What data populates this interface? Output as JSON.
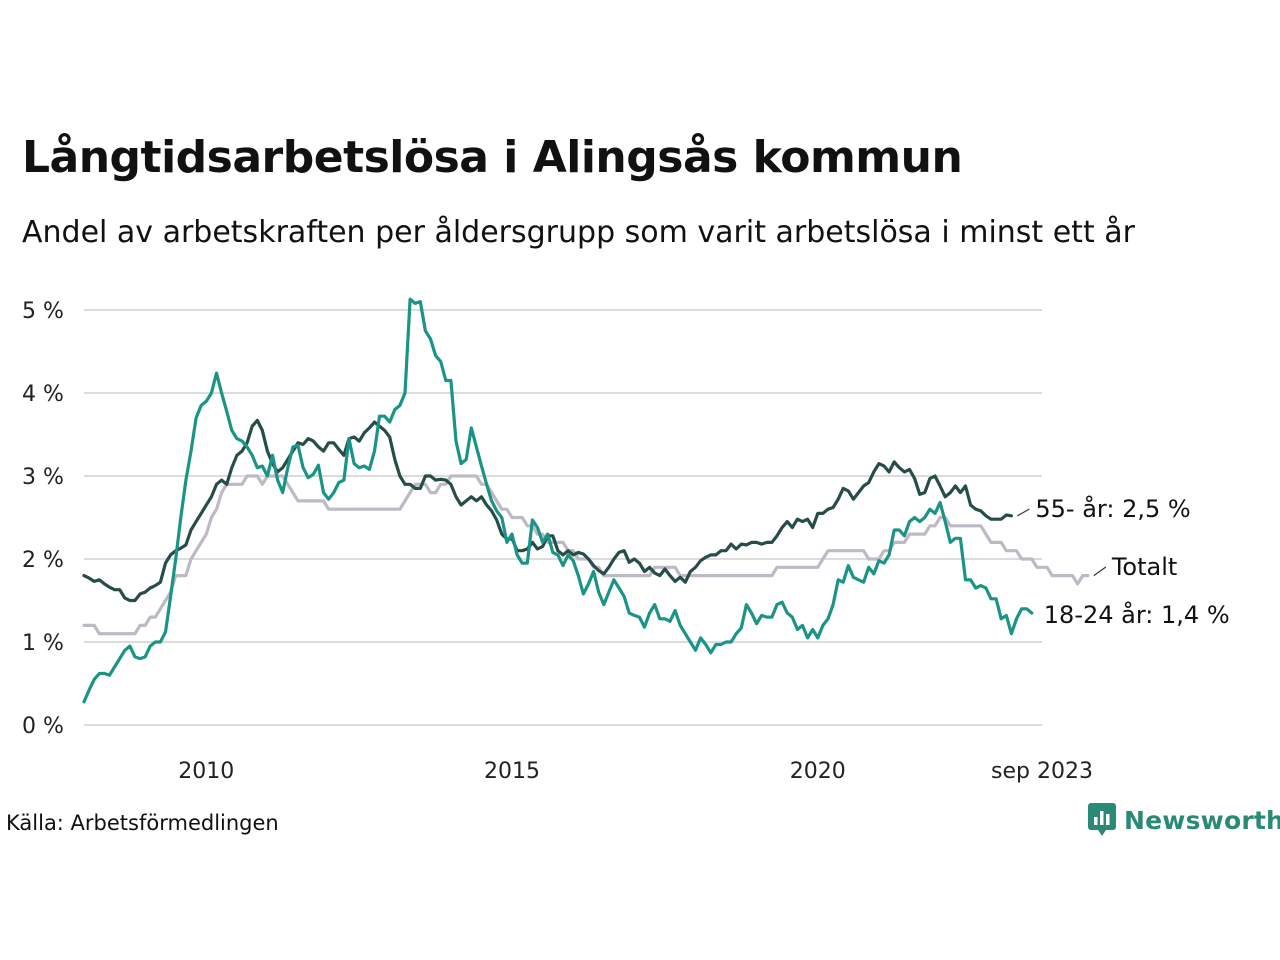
{
  "title": "Långtidsarbetslösa i Alingsås kommun",
  "subtitle": "Andel av arbetskraften per åldersgrupp som varit arbetslösa i minst ett år",
  "source": "Källa: Arbetsförmedlingen",
  "brand": "Newsworthy",
  "colors": {
    "total": "#bdbac6",
    "age55": "#264d48",
    "age18_24": "#1b9485",
    "grid": "#dcdcdc",
    "brand": "#2a8a76"
  },
  "chart_data": {
    "type": "line",
    "title": "Långtidsarbetslösa i Alingsås kommun",
    "subtitle": "Andel av arbetskraften per åldersgrupp som varit arbetslösa i minst ett år",
    "xlabel": "",
    "ylabel": "",
    "x_start": 2008.0,
    "x_step": 0.083333,
    "xlim": [
      2008.0,
      2023.667
    ],
    "ylim": [
      0,
      5
    ],
    "y_ticks": [
      0,
      1,
      2,
      3,
      4,
      5
    ],
    "y_tick_labels": [
      "0 %",
      "1 %",
      "2 %",
      "3 %",
      "4 %",
      "5 %"
    ],
    "x_ticks": [
      2010,
      2015,
      2020,
      2023.667
    ],
    "x_tick_labels": [
      "2010",
      "2015",
      "2020",
      "sep 2023"
    ],
    "grid": true,
    "legend": "direct-labels-right",
    "end_labels": [
      "55- år: 2,5 %",
      "Totalt",
      "18-24 år: 1,4 %"
    ],
    "series": [
      {
        "name": "Totalt",
        "label": "Totalt",
        "key": "total",
        "values": [
          1.2,
          1.2,
          1.2,
          1.1,
          1.1,
          1.1,
          1.1,
          1.1,
          1.1,
          1.1,
          1.1,
          1.2,
          1.2,
          1.3,
          1.3,
          1.4,
          1.5,
          1.6,
          1.8,
          1.8,
          1.8,
          2.0,
          2.1,
          2.2,
          2.3,
          2.5,
          2.6,
          2.8,
          2.9,
          2.9,
          2.9,
          2.9,
          3.0,
          3.0,
          3.0,
          2.9,
          3.0,
          3.0,
          3.0,
          3.0,
          2.9,
          2.8,
          2.7,
          2.7,
          2.7,
          2.7,
          2.7,
          2.7,
          2.6,
          2.6,
          2.6,
          2.6,
          2.6,
          2.6,
          2.6,
          2.6,
          2.6,
          2.6,
          2.6,
          2.6,
          2.6,
          2.6,
          2.6,
          2.7,
          2.8,
          2.9,
          2.9,
          2.9,
          2.8,
          2.8,
          2.9,
          2.9,
          3.0,
          3.0,
          3.0,
          3.0,
          3.0,
          3.0,
          2.9,
          2.9,
          2.8,
          2.7,
          2.6,
          2.6,
          2.5,
          2.5,
          2.5,
          2.4,
          2.4,
          2.3,
          2.3,
          2.2,
          2.2,
          2.2,
          2.2,
          2.1,
          2.1,
          2.0,
          2.0,
          2.0,
          1.9,
          1.9,
          1.8,
          1.8,
          1.8,
          1.8,
          1.8,
          1.8,
          1.8,
          1.8,
          1.8,
          1.8,
          1.9,
          1.9,
          1.9,
          1.9,
          1.9,
          1.8,
          1.8,
          1.8,
          1.8,
          1.8,
          1.8,
          1.8,
          1.8,
          1.8,
          1.8,
          1.8,
          1.8,
          1.8,
          1.8,
          1.8,
          1.8,
          1.8,
          1.8,
          1.8,
          1.9,
          1.9,
          1.9,
          1.9,
          1.9,
          1.9,
          1.9,
          1.9,
          1.9,
          2.0,
          2.1,
          2.1,
          2.1,
          2.1,
          2.1,
          2.1,
          2.1,
          2.1,
          2.0,
          2.0,
          2.0,
          2.1,
          2.1,
          2.2,
          2.2,
          2.2,
          2.3,
          2.3,
          2.3,
          2.3,
          2.4,
          2.4,
          2.5,
          2.5,
          2.4,
          2.4,
          2.4,
          2.4,
          2.4,
          2.4,
          2.4,
          2.3,
          2.2,
          2.2,
          2.2,
          2.1,
          2.1,
          2.1,
          2.0,
          2.0,
          2.0,
          1.9,
          1.9,
          1.9,
          1.8,
          1.8,
          1.8,
          1.8,
          1.8,
          1.7,
          1.8,
          1.8
        ]
      },
      {
        "name": "55- år",
        "label": "55- år: 2,5 %",
        "key": "age55",
        "values": [
          1.8,
          1.77,
          1.73,
          1.75,
          1.7,
          1.66,
          1.63,
          1.63,
          1.53,
          1.5,
          1.5,
          1.58,
          1.6,
          1.65,
          1.68,
          1.72,
          1.95,
          2.05,
          2.1,
          2.13,
          2.17,
          2.35,
          2.45,
          2.55,
          2.65,
          2.75,
          2.9,
          2.95,
          2.9,
          3.1,
          3.25,
          3.3,
          3.4,
          3.6,
          3.67,
          3.55,
          3.3,
          3.15,
          3.05,
          3.1,
          3.2,
          3.3,
          3.4,
          3.38,
          3.45,
          3.42,
          3.35,
          3.3,
          3.4,
          3.4,
          3.32,
          3.25,
          3.45,
          3.47,
          3.42,
          3.52,
          3.58,
          3.65,
          3.6,
          3.55,
          3.47,
          3.2,
          3.0,
          2.9,
          2.9,
          2.85,
          2.85,
          3.0,
          3.0,
          2.95,
          2.96,
          2.95,
          2.9,
          2.75,
          2.65,
          2.7,
          2.75,
          2.7,
          2.75,
          2.65,
          2.58,
          2.47,
          2.3,
          2.24,
          2.25,
          2.1,
          2.1,
          2.12,
          2.2,
          2.12,
          2.15,
          2.28,
          2.28,
          2.1,
          2.05,
          2.1,
          2.05,
          2.08,
          2.06,
          2.0,
          1.92,
          1.86,
          1.82,
          1.9,
          2.0,
          2.08,
          2.1,
          1.96,
          2.0,
          1.95,
          1.85,
          1.9,
          1.83,
          1.8,
          1.88,
          1.8,
          1.73,
          1.78,
          1.72,
          1.85,
          1.9,
          1.98,
          2.02,
          2.05,
          2.05,
          2.1,
          2.1,
          2.18,
          2.12,
          2.18,
          2.17,
          2.2,
          2.2,
          2.18,
          2.2,
          2.2,
          2.28,
          2.38,
          2.45,
          2.38,
          2.48,
          2.45,
          2.48,
          2.38,
          2.55,
          2.55,
          2.6,
          2.62,
          2.72,
          2.85,
          2.82,
          2.72,
          2.8,
          2.88,
          2.92,
          3.05,
          3.15,
          3.12,
          3.05,
          3.17,
          3.1,
          3.05,
          3.08,
          2.97,
          2.78,
          2.8,
          2.97,
          3.0,
          2.88,
          2.75,
          2.8,
          2.88,
          2.8,
          2.88,
          2.65,
          2.6,
          2.58,
          2.52,
          2.48,
          2.48,
          2.48,
          2.53,
          2.52
        ]
      },
      {
        "name": "18-24 år",
        "label": "18-24 år: 1,4 %",
        "key": "age18_24",
        "values": [
          0.28,
          0.42,
          0.55,
          0.62,
          0.62,
          0.6,
          0.7,
          0.8,
          0.9,
          0.95,
          0.82,
          0.8,
          0.82,
          0.95,
          1.0,
          1.0,
          1.12,
          1.55,
          2.0,
          2.5,
          2.95,
          3.3,
          3.7,
          3.85,
          3.9,
          4.0,
          4.24,
          4.0,
          3.78,
          3.55,
          3.45,
          3.42,
          3.35,
          3.25,
          3.1,
          3.12,
          3.0,
          3.25,
          2.95,
          2.8,
          3.1,
          3.35,
          3.37,
          3.1,
          2.98,
          3.02,
          3.13,
          2.8,
          2.72,
          2.8,
          2.92,
          2.95,
          3.45,
          3.15,
          3.1,
          3.12,
          3.08,
          3.3,
          3.72,
          3.72,
          3.65,
          3.8,
          3.85,
          4.0,
          5.13,
          5.08,
          5.1,
          4.75,
          4.65,
          4.45,
          4.38,
          4.15,
          4.15,
          3.42,
          3.15,
          3.2,
          3.58,
          3.35,
          3.12,
          2.9,
          2.7,
          2.58,
          2.5,
          2.2,
          2.3,
          2.05,
          1.95,
          1.95,
          2.47,
          2.38,
          2.2,
          2.3,
          2.08,
          2.05,
          1.92,
          2.05,
          1.98,
          1.8,
          1.58,
          1.7,
          1.85,
          1.6,
          1.45,
          1.6,
          1.75,
          1.65,
          1.55,
          1.35,
          1.32,
          1.3,
          1.18,
          1.35,
          1.45,
          1.28,
          1.28,
          1.25,
          1.38,
          1.2,
          1.1,
          1.0,
          0.9,
          1.05,
          0.97,
          0.87,
          0.97,
          0.97,
          1.0,
          1.0,
          1.1,
          1.17,
          1.45,
          1.35,
          1.22,
          1.32,
          1.3,
          1.3,
          1.45,
          1.48,
          1.35,
          1.3,
          1.15,
          1.2,
          1.05,
          1.15,
          1.05,
          1.2,
          1.28,
          1.45,
          1.75,
          1.72,
          1.92,
          1.78,
          1.75,
          1.72,
          1.9,
          1.82,
          1.98,
          1.95,
          2.05,
          2.35,
          2.35,
          2.28,
          2.45,
          2.5,
          2.45,
          2.5,
          2.6,
          2.55,
          2.68,
          2.45,
          2.2,
          2.25,
          2.25,
          1.75,
          1.75,
          1.65,
          1.68,
          1.65,
          1.52,
          1.52,
          1.28,
          1.32,
          1.1,
          1.28,
          1.4,
          1.4,
          1.35
        ]
      }
    ]
  }
}
